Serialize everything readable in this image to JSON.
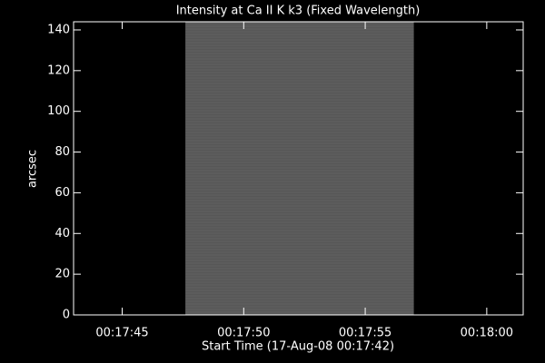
{
  "chart_data": {
    "type": "image",
    "title": "Intensity at Ca II K k3 (Fixed Wavelength)",
    "xlabel": "Start Time (17-Aug-08 00:17:42)",
    "ylabel": "arcsec",
    "xlim": [
      43,
      61.5
    ],
    "ylim": [
      0,
      144
    ],
    "xticks": [
      {
        "value": 45,
        "label": "00:17:45"
      },
      {
        "value": 50,
        "label": "00:17:50"
      },
      {
        "value": 55,
        "label": "00:17:55"
      },
      {
        "value": 60,
        "label": "00:18:00"
      }
    ],
    "yticks": [
      0,
      20,
      40,
      60,
      80,
      100,
      120,
      140
    ],
    "image_x": [
      47.6,
      57.0
    ],
    "image_y": [
      0,
      144
    ],
    "color": "#5c5c5c",
    "background": "#000000",
    "axis_color": "#ffffff"
  }
}
